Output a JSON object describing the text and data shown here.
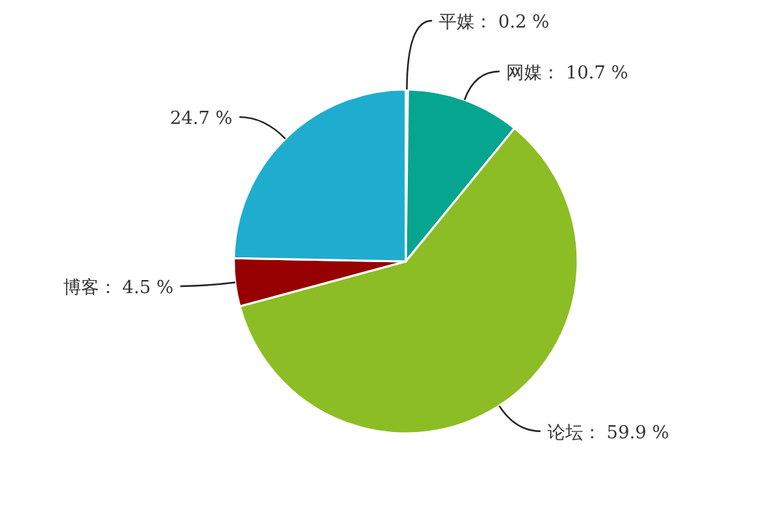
{
  "chart_data": {
    "type": "pie",
    "categories": [
      "平媒",
      "网媒",
      "论坛",
      "博客",
      null
    ],
    "values": [
      0.2,
      10.7,
      59.9,
      4.5,
      24.7
    ],
    "colors": [
      "#2f4554",
      "#06a58f",
      "#8cbd24",
      "#960000",
      "#1eadcf"
    ],
    "value_labels": [
      "： 0.2 %",
      "： 10.7 %",
      "： 59.9 %",
      "： 4.5 %",
      "24.7 %"
    ]
  }
}
